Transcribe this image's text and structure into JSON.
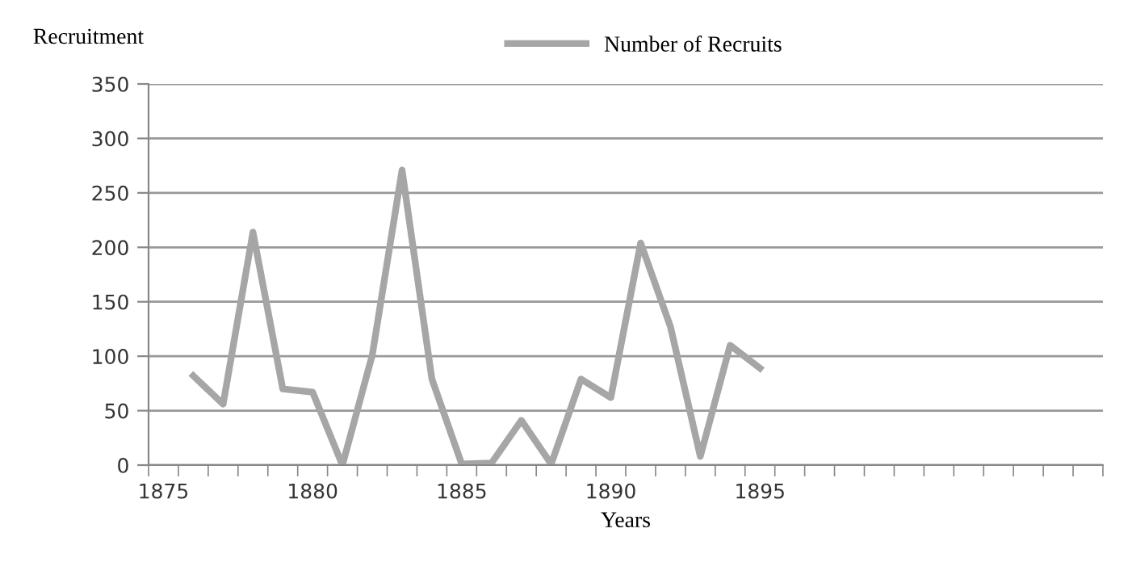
{
  "chart_data": {
    "type": "line",
    "xlabel": "Years",
    "ylabel": "Recruitment",
    "x": [
      1876,
      1877,
      1878,
      1879,
      1880,
      1881,
      1882,
      1883,
      1884,
      1885,
      1886,
      1887,
      1888,
      1889,
      1890,
      1891,
      1892,
      1893,
      1894,
      1895
    ],
    "series": [
      {
        "name": "Number of Recruits",
        "color": "#a6a6a6",
        "values": [
          82,
          56,
          214,
          70,
          67,
          0,
          101,
          271,
          79,
          1,
          2,
          41,
          1,
          79,
          62,
          204,
          127,
          8,
          110,
          89
        ]
      }
    ],
    "xlim": [
      1874.5,
      1906.5
    ],
    "xticks": [
      1875,
      1880,
      1885,
      1890,
      1895,
      {
        "value": 1874.5,
        "label": null
      },
      {
        "value": 1875.5,
        "label": null
      },
      {
        "value": 1876.5,
        "label": null
      },
      {
        "value": 1877.5,
        "label": null
      },
      {
        "value": 1878.5,
        "label": null
      },
      {
        "value": 1879.5,
        "label": null
      },
      {
        "value": 1880.5,
        "label": null
      },
      {
        "value": 1881.5,
        "label": null
      },
      {
        "value": 1882.5,
        "label": null
      },
      {
        "value": 1883.5,
        "label": null
      },
      {
        "value": 1884.5,
        "label": null
      },
      {
        "value": 1885.5,
        "label": null
      },
      {
        "value": 1886.5,
        "label": null
      },
      {
        "value": 1887.5,
        "label": null
      },
      {
        "value": 1888.5,
        "label": null
      },
      {
        "value": 1889.5,
        "label": null
      },
      {
        "value": 1890.5,
        "label": null
      },
      {
        "value": 1891.5,
        "label": null
      },
      {
        "value": 1892.5,
        "label": null
      },
      {
        "value": 1893.5,
        "label": null
      },
      {
        "value": 1894.5,
        "label": null
      },
      {
        "value": 1895.5,
        "label": null
      },
      {
        "value": 1896.5,
        "label": null
      },
      {
        "value": 1897.5,
        "label": null
      },
      {
        "value": 1898.5,
        "label": null
      },
      {
        "value": 1899.5,
        "label": null
      },
      {
        "value": 1900.5,
        "label": null
      },
      {
        "value": 1901.5,
        "label": null
      },
      {
        "value": 1902.5,
        "label": null
      },
      {
        "value": 1903.5,
        "label": null
      },
      {
        "value": 1904.5,
        "label": null
      },
      {
        "value": 1905.5,
        "label": null
      },
      {
        "value": 1906.5,
        "label": null
      }
    ],
    "ylim": [
      0,
      350
    ],
    "yticks": [
      0,
      50,
      100,
      150,
      200,
      250,
      300,
      350
    ],
    "grid": "y",
    "legend": "top right",
    "marker": "none",
    "line_style": "solid"
  }
}
